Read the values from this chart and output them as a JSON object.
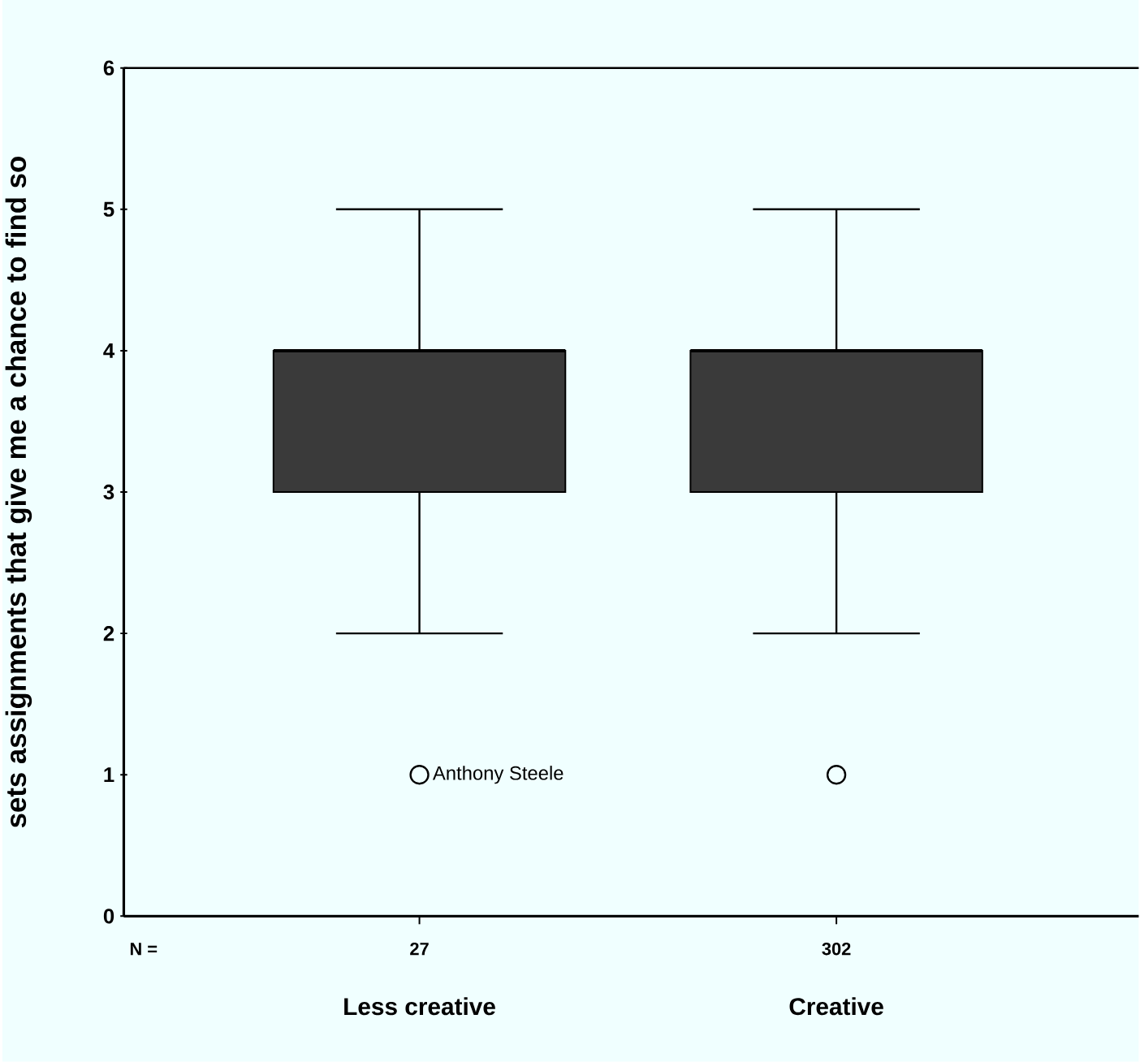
{
  "chart_data": {
    "type": "box",
    "ylabel": "sets assignments that give me a chance to find so",
    "categories": [
      "Less creative",
      "Creative"
    ],
    "boxes": [
      {
        "low": 2,
        "q1": 3,
        "median": 4,
        "q3": 4,
        "high": 5,
        "outliers": [
          1
        ]
      },
      {
        "low": 2,
        "q1": 3,
        "median": 4,
        "q3": 4,
        "high": 5,
        "outliers": [
          1
        ]
      }
    ],
    "color": "#3a3a3a",
    "ylim": [
      0,
      6
    ],
    "yticks": [
      0,
      1,
      2,
      3,
      4,
      5,
      6
    ],
    "grid": false,
    "marker": "circle",
    "annotations": [
      "N =",
      "27",
      "302",
      "Anthony Steele"
    ]
  }
}
